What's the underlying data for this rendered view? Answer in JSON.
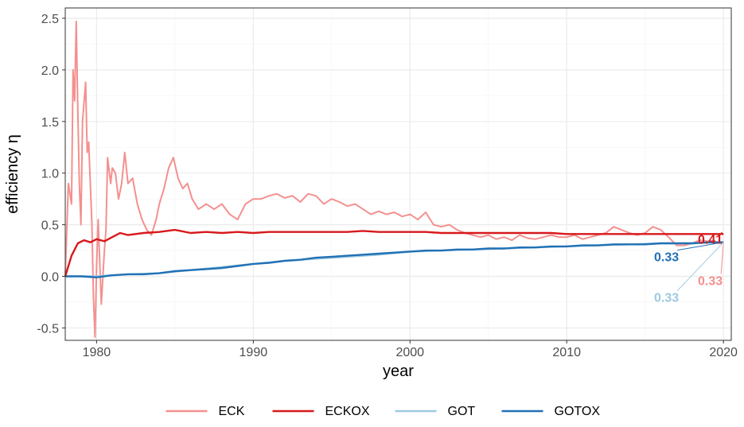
{
  "chart_data": {
    "type": "line",
    "title": "",
    "xlabel": "year",
    "ylabel": "efficiency η",
    "xlim": [
      1978,
      2020.5
    ],
    "ylim": [
      -0.62,
      2.6
    ],
    "x_ticks": [
      1980,
      1990,
      2000,
      2010,
      2020
    ],
    "y_ticks": [
      -0.5,
      0.0,
      0.5,
      1.0,
      1.5,
      2.0,
      2.5
    ],
    "y_tick_labels": [
      "-0.5",
      "0.0",
      "0.5",
      "1.0",
      "1.5",
      "2.0",
      "2.5"
    ],
    "grid": true,
    "legend_position": "bottom",
    "colors": {
      "ECK": "#f4908f",
      "ECKOX": "#d7191c",
      "GOT": "#9ecae1",
      "GOTOX": "#2171b5"
    },
    "series": [
      {
        "name": "ECK",
        "x": [
          1978,
          1978.2,
          1978.4,
          1978.5,
          1978.6,
          1978.7,
          1978.8,
          1978.9,
          1979.0,
          1979.1,
          1979.3,
          1979.4,
          1979.5,
          1979.7,
          1979.8,
          1979.9,
          1980.0,
          1980.1,
          1980.3,
          1980.5,
          1980.6,
          1980.7,
          1980.9,
          1981.0,
          1981.2,
          1981.4,
          1981.6,
          1981.8,
          1982.0,
          1982.3,
          1982.6,
          1982.9,
          1983.2,
          1983.5,
          1983.8,
          1984.0,
          1984.3,
          1984.6,
          1984.9,
          1985.2,
          1985.5,
          1985.8,
          1986.1,
          1986.5,
          1987.0,
          1987.5,
          1988.0,
          1988.5,
          1989.0,
          1989.5,
          1990.0,
          1990.5,
          1991.0,
          1991.5,
          1992.0,
          1992.5,
          1993.0,
          1993.5,
          1994.0,
          1994.5,
          1995.0,
          1995.5,
          1996.0,
          1996.5,
          1997.0,
          1997.5,
          1998.0,
          1998.5,
          1999.0,
          1999.5,
          2000.0,
          2000.5,
          2001.0,
          2001.5,
          2002.0,
          2002.5,
          2003.0,
          2003.5,
          2004.0,
          2004.5,
          2005.0,
          2005.5,
          2006.0,
          2006.5,
          2007.0,
          2007.5,
          2008.0,
          2008.5,
          2009.0,
          2009.5,
          2010.0,
          2010.5,
          2011.0,
          2011.5,
          2012.0,
          2012.5,
          2013.0,
          2013.5,
          2014.0,
          2014.5,
          2015.0,
          2015.5,
          2016.0,
          2016.5,
          2017.0,
          2017.5,
          2018.0,
          2018.5,
          2019.0,
          2019.5,
          2020.0
        ],
        "values": [
          0.0,
          0.9,
          0.7,
          2.0,
          1.7,
          2.47,
          1.6,
          0.9,
          0.5,
          1.5,
          1.88,
          1.2,
          1.3,
          0.5,
          -0.2,
          -0.59,
          0.1,
          0.55,
          -0.27,
          0.25,
          0.45,
          1.15,
          0.9,
          1.05,
          1.0,
          0.75,
          0.9,
          1.2,
          0.9,
          0.95,
          0.7,
          0.55,
          0.45,
          0.4,
          0.55,
          0.7,
          0.85,
          1.05,
          1.15,
          0.95,
          0.85,
          0.9,
          0.75,
          0.65,
          0.7,
          0.65,
          0.7,
          0.6,
          0.55,
          0.7,
          0.75,
          0.75,
          0.78,
          0.8,
          0.76,
          0.78,
          0.72,
          0.8,
          0.78,
          0.7,
          0.75,
          0.72,
          0.68,
          0.7,
          0.65,
          0.6,
          0.63,
          0.6,
          0.62,
          0.58,
          0.6,
          0.55,
          0.62,
          0.5,
          0.48,
          0.5,
          0.45,
          0.42,
          0.4,
          0.38,
          0.4,
          0.36,
          0.38,
          0.35,
          0.4,
          0.37,
          0.36,
          0.38,
          0.4,
          0.38,
          0.38,
          0.4,
          0.36,
          0.38,
          0.4,
          0.42,
          0.48,
          0.45,
          0.42,
          0.4,
          0.42,
          0.48,
          0.45,
          0.38,
          0.3,
          0.3,
          0.32,
          0.35,
          0.34,
          0.33,
          0.33
        ]
      },
      {
        "name": "ECKOX",
        "x": [
          1978,
          1978.4,
          1978.8,
          1979.2,
          1979.6,
          1980.0,
          1980.5,
          1981.0,
          1981.5,
          1982.0,
          1983.0,
          1984.0,
          1985.0,
          1986.0,
          1987.0,
          1988.0,
          1989.0,
          1990.0,
          1991.0,
          1992.0,
          1993.0,
          1994.0,
          1995.0,
          1996.0,
          1997.0,
          1998.0,
          1999.0,
          2000.0,
          2001.0,
          2002.0,
          2003.0,
          2004.0,
          2005.0,
          2006.0,
          2007.0,
          2008.0,
          2009.0,
          2010.0,
          2011.0,
          2012.0,
          2013.0,
          2014.0,
          2015.0,
          2016.0,
          2017.0,
          2018.0,
          2019.0,
          2020.0
        ],
        "values": [
          0.0,
          0.2,
          0.32,
          0.35,
          0.33,
          0.36,
          0.34,
          0.38,
          0.42,
          0.4,
          0.42,
          0.43,
          0.45,
          0.42,
          0.43,
          0.42,
          0.43,
          0.42,
          0.43,
          0.43,
          0.43,
          0.43,
          0.43,
          0.43,
          0.44,
          0.43,
          0.43,
          0.43,
          0.43,
          0.42,
          0.42,
          0.42,
          0.42,
          0.42,
          0.42,
          0.42,
          0.42,
          0.41,
          0.41,
          0.41,
          0.41,
          0.41,
          0.41,
          0.41,
          0.41,
          0.41,
          0.41,
          0.41
        ]
      },
      {
        "name": "GOT",
        "x": [
          1978,
          1980.0,
          1982.0,
          1984.0,
          1986.0,
          1988.0,
          1990.0,
          1992.0,
          1994.0,
          1996.0,
          1998.0,
          2000.0,
          2002.0,
          2004.0,
          2006.0,
          2008.0,
          2010.0,
          2012.0,
          2014.0,
          2016.0,
          2018.0,
          2020.0
        ],
        "values": [
          0.0,
          0.0,
          0.02,
          0.03,
          0.06,
          0.09,
          0.12,
          0.15,
          0.17,
          0.19,
          0.21,
          0.24,
          0.25,
          0.26,
          0.27,
          0.28,
          0.29,
          0.3,
          0.31,
          0.32,
          0.32,
          0.33
        ]
      },
      {
        "name": "GOTOX",
        "x": [
          1978,
          1979.0,
          1980.0,
          1981.0,
          1982.0,
          1983.0,
          1984.0,
          1985.0,
          1986.0,
          1987.0,
          1988.0,
          1989.0,
          1990.0,
          1991.0,
          1992.0,
          1993.0,
          1994.0,
          1995.0,
          1996.0,
          1997.0,
          1998.0,
          1999.0,
          2000.0,
          2001.0,
          2002.0,
          2003.0,
          2004.0,
          2005.0,
          2006.0,
          2007.0,
          2008.0,
          2009.0,
          2010.0,
          2011.0,
          2012.0,
          2013.0,
          2014.0,
          2015.0,
          2016.0,
          2017.0,
          2018.0,
          2019.0,
          2020.0
        ],
        "values": [
          0.0,
          0.0,
          -0.01,
          0.01,
          0.02,
          0.02,
          0.03,
          0.05,
          0.06,
          0.07,
          0.08,
          0.1,
          0.12,
          0.13,
          0.15,
          0.16,
          0.18,
          0.19,
          0.2,
          0.21,
          0.22,
          0.23,
          0.24,
          0.25,
          0.25,
          0.26,
          0.26,
          0.27,
          0.27,
          0.28,
          0.28,
          0.29,
          0.29,
          0.3,
          0.3,
          0.31,
          0.31,
          0.31,
          0.32,
          0.32,
          0.32,
          0.33,
          0.33
        ]
      }
    ],
    "end_labels": [
      {
        "series": "ECKOX",
        "text": "0.41"
      },
      {
        "series": "GOTOX",
        "text": "0.33"
      },
      {
        "series": "ECK",
        "text": "0.33"
      },
      {
        "series": "GOT",
        "text": "0.33"
      }
    ]
  }
}
